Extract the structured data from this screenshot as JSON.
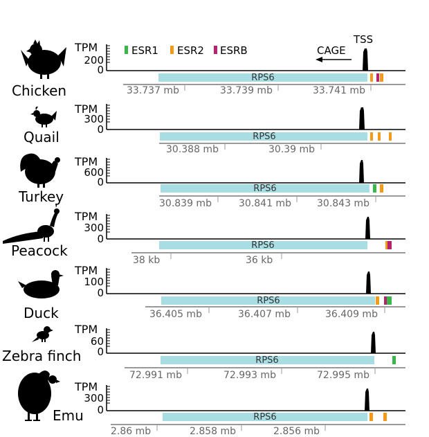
{
  "legend": {
    "items": [
      {
        "label": "ESR1",
        "color": "#3cb54a"
      },
      {
        "label": "ESR2",
        "color": "#f39a1d"
      },
      {
        "label": "ESRB",
        "color": "#b5226e"
      }
    ]
  },
  "annotations": {
    "tss": "TSS",
    "cage": "CAGE"
  },
  "colors": {
    "gene_bar": "#a8dde3",
    "axis": "#999999",
    "signal": "#000000"
  },
  "tracks": [
    {
      "species": "Chicken",
      "silhouette": "chicken-silhouette-icon",
      "y_label": "TPM",
      "y_tick": "200",
      "y_zero": "0",
      "gene": "RPS6",
      "coords": [
        "33.737 mb",
        "33.739 mb",
        "33.741 mb"
      ],
      "motifs": [
        "ESR2",
        "ESRB",
        "ESR2"
      ]
    },
    {
      "species": "Quail",
      "silhouette": "quail-silhouette-icon",
      "y_label": "TPM",
      "y_tick": "300",
      "y_zero": "0",
      "gene": "RPS6",
      "coords": [
        "30.388 mb",
        "30.39 mb"
      ],
      "motifs": [
        "ESR2",
        "ESR2",
        "ESR2"
      ]
    },
    {
      "species": "Turkey",
      "silhouette": "turkey-silhouette-icon",
      "y_label": "TPM",
      "y_tick": "600",
      "y_zero": "0",
      "gene": "RPS6",
      "coords": [
        "30.839 mb",
        "30.841 mb",
        "30.843 mb"
      ],
      "motifs": [
        "ESR1",
        "ESR2"
      ]
    },
    {
      "species": "Peacock",
      "silhouette": "peacock-silhouette-icon",
      "y_label": "TPM",
      "y_tick": "300",
      "y_zero": "0",
      "gene": "RPS6",
      "coords": [
        "38 kb",
        "36 kb"
      ],
      "motifs": [
        "ESR2",
        "ESRB"
      ]
    },
    {
      "species": "Duck",
      "silhouette": "duck-silhouette-icon",
      "y_label": "TPM",
      "y_tick": "100",
      "y_zero": "0",
      "gene": "RPS6",
      "coords": [
        "36.405 mb",
        "36.407 mb",
        "36.409 mb"
      ],
      "motifs": [
        "ESR2",
        "ESRB",
        "ESR1"
      ]
    },
    {
      "species": "Zebra finch",
      "silhouette": "zebra-finch-silhouette-icon",
      "y_label": "TPM",
      "y_tick": "60",
      "y_zero": "0",
      "gene": "RPS6",
      "coords": [
        "72.991 mb",
        "72.993 mb",
        "72.995 mb"
      ],
      "motifs": [
        "ESR1"
      ]
    },
    {
      "species": "Emu",
      "silhouette": "emu-silhouette-icon",
      "y_label": "TPM",
      "y_tick": "300",
      "y_zero": "0",
      "gene": "RPS6",
      "coords": [
        "2.86 mb",
        "2.858 mb",
        "2.856 mb"
      ],
      "motifs": [
        "ESR2",
        "ESR2"
      ]
    }
  ]
}
